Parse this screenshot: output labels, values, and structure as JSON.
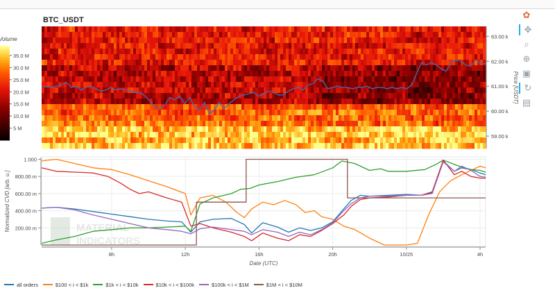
{
  "title": "BTC_USDT",
  "chart_data": [
    {
      "type": "heatmap",
      "title": "BTC_USDT",
      "ylabel": "Price [USDT]",
      "ylim": [
        58500,
        63400
      ],
      "yticks": [
        59000,
        60000,
        61000,
        62000,
        63000
      ],
      "ytick_labels": [
        "59.00 k",
        "60.00 k",
        "61.00 k",
        "62.00 k",
        "63.00 k"
      ],
      "colorbar": {
        "label": "Volume",
        "range": [
          0,
          39000000
        ],
        "ticks": [
          5000000,
          10000000,
          15000000,
          20000000,
          25000000,
          30000000,
          35000000
        ],
        "tick_labels": [
          "5 M",
          "10.0 M",
          "15.0 M",
          "20.0 M",
          "25.0 M",
          "30.0 M",
          "35.0 M"
        ]
      },
      "price_line": {
        "color": "#3d6fb5",
        "x": [
          0,
          1,
          2,
          2.5,
          3,
          3.5,
          4,
          4.5,
          5,
          5.5,
          6,
          6.5,
          7,
          7.5,
          8,
          8.5,
          9,
          9.5,
          10,
          10.5,
          11,
          11.5,
          12,
          12.5,
          13,
          13.5,
          14,
          14.5,
          15,
          15.5,
          16,
          16.5,
          17,
          17.5,
          18,
          18.5,
          19,
          19.5,
          20,
          20.5,
          21,
          21.5,
          22,
          22.5,
          23,
          23.5,
          24,
          24.5,
          25,
          25.5,
          26,
          26.5,
          27,
          27.5,
          28,
          28.5,
          29,
          29.5,
          30,
          30.5,
          31,
          31.5,
          32,
          32.5,
          33,
          33.5,
          34,
          34.5,
          35,
          35.5,
          36,
          36.5,
          37,
          37.5,
          38,
          38.5,
          39,
          39.5,
          40,
          40.5,
          41,
          41.5,
          42,
          42.5,
          43,
          43.5,
          44,
          44.5,
          45
        ],
        "y": [
          61000,
          60950,
          61050,
          61150,
          60950,
          61000,
          60850,
          60950,
          61000,
          60900,
          60800,
          60850,
          60950,
          60850,
          60900,
          60850,
          60800,
          60750,
          60750,
          60600,
          60400,
          60150,
          60100,
          60250,
          60550,
          60450,
          60600,
          60300,
          60550,
          60200,
          60050,
          60350,
          59900,
          60050,
          60350,
          60100,
          60300,
          60450,
          60600,
          60650,
          60700,
          60750,
          60600,
          60700,
          60800,
          60750,
          60650,
          60650,
          60800,
          60900,
          60950,
          60850,
          61050,
          61100,
          61300,
          61200,
          60900,
          60950,
          61000,
          60950,
          60950,
          60900,
          60950,
          60950,
          61000,
          60900,
          60950,
          60950,
          60900,
          60950,
          60900,
          60950,
          60900,
          61050,
          61500,
          61950,
          61850,
          61950,
          61850,
          61700,
          61600,
          61950,
          62050,
          62000,
          61850,
          61800,
          62050,
          61900,
          61900
        ]
      }
    },
    {
      "type": "line",
      "xlabel": "Date (UTC)",
      "ylabel": "Normalized CVD [arb. u.]",
      "ylim": [
        0,
        1.02
      ],
      "yticks": [
        0.2,
        0.4,
        0.6,
        0.8,
        1.0
      ],
      "ytick_labels": [
        "200.00 m",
        "400.00 m",
        "600.00 m",
        "800.00 m",
        "1.000"
      ],
      "xticks": [
        8,
        12,
        16,
        20,
        24,
        28
      ],
      "xtick_labels": [
        "8h",
        "12h",
        "16h",
        "20h",
        "10/25",
        "4h"
      ],
      "xlim": [
        4.2,
        28.3
      ],
      "series": [
        {
          "name": "all orders",
          "color": "#1f77b4",
          "x": [
            4.2,
            5,
            6,
            7,
            8,
            9,
            10,
            11,
            11.8,
            12.3,
            12.8,
            13.5,
            14.5,
            15.2,
            15.6,
            16.2,
            17,
            17.6,
            18.2,
            18.8,
            19.4,
            20,
            20.6,
            21,
            21.5,
            22,
            23,
            24,
            24.8,
            25.4,
            26,
            26.6,
            27,
            27.5,
            28,
            28.3
          ],
          "y": [
            0.43,
            0.44,
            0.42,
            0.39,
            0.36,
            0.33,
            0.3,
            0.28,
            0.27,
            0.15,
            0.27,
            0.3,
            0.31,
            0.24,
            0.14,
            0.26,
            0.21,
            0.15,
            0.2,
            0.17,
            0.2,
            0.27,
            0.42,
            0.52,
            0.58,
            0.57,
            0.58,
            0.59,
            0.58,
            0.61,
            0.98,
            0.86,
            0.9,
            0.88,
            0.84,
            0.82
          ]
        },
        {
          "name": "$100 < i < $1k",
          "color": "#ff7f0e",
          "x": [
            4.2,
            5,
            6,
            7,
            8,
            9,
            10,
            11,
            12,
            12.3,
            12.8,
            13.5,
            14.2,
            14.8,
            15.2,
            15.6,
            16.2,
            16.8,
            17.4,
            18,
            18.5,
            19,
            19.4,
            20,
            20.6,
            21.2,
            22,
            22.8,
            23.5,
            24,
            24.6,
            25.2,
            25.8,
            26.4,
            27,
            27.6,
            28,
            28.3
          ],
          "y": [
            0.98,
            1.0,
            0.95,
            0.9,
            0.88,
            0.82,
            0.75,
            0.68,
            0.6,
            0.35,
            0.55,
            0.58,
            0.5,
            0.38,
            0.32,
            0.42,
            0.5,
            0.47,
            0.52,
            0.47,
            0.38,
            0.4,
            0.33,
            0.3,
            0.22,
            0.18,
            0.08,
            0.0,
            0.0,
            0.0,
            0.02,
            0.35,
            0.62,
            0.75,
            0.82,
            0.88,
            0.92,
            0.9
          ]
        },
        {
          "name": "$1k < i < $10k",
          "color": "#2ca02c",
          "x": [
            4.2,
            5,
            6,
            7,
            8,
            9,
            10,
            11,
            12,
            12.3,
            12.8,
            13.5,
            14.5,
            15,
            15.5,
            16,
            17,
            18,
            19,
            20,
            20.5,
            21.2,
            22,
            22.6,
            23,
            24,
            25,
            25.6,
            26,
            26.6,
            27,
            27.5,
            28,
            28.3
          ],
          "y": [
            0.02,
            0.06,
            0.1,
            0.16,
            0.18,
            0.2,
            0.2,
            0.21,
            0.22,
            0.16,
            0.48,
            0.55,
            0.6,
            0.65,
            0.66,
            0.7,
            0.74,
            0.79,
            0.82,
            0.9,
            0.98,
            0.95,
            0.87,
            0.89,
            0.86,
            0.86,
            0.88,
            0.94,
            0.99,
            0.94,
            0.91,
            0.88,
            0.87,
            0.85
          ]
        },
        {
          "name": "$10k < i < $100k",
          "color": "#d62728",
          "x": [
            4.2,
            5,
            6,
            7,
            7.8,
            8.5,
            9,
            9.5,
            10,
            11,
            11.8,
            12.3,
            12.8,
            13.5,
            14.5,
            15.2,
            15.6,
            16.2,
            17,
            17.6,
            18.2,
            18.8,
            19.4,
            20,
            20.6,
            21,
            21.5,
            22,
            23,
            24,
            24.8,
            25.4,
            26,
            26.6,
            27,
            27.5,
            28,
            28.3
          ],
          "y": [
            0.9,
            0.86,
            0.85,
            0.84,
            0.8,
            0.72,
            0.65,
            0.6,
            0.62,
            0.55,
            0.5,
            0.22,
            0.25,
            0.2,
            0.15,
            0.1,
            0.05,
            0.14,
            0.08,
            0.05,
            0.12,
            0.1,
            0.17,
            0.25,
            0.35,
            0.45,
            0.53,
            0.55,
            0.56,
            0.58,
            0.58,
            0.62,
            0.99,
            0.82,
            0.86,
            0.8,
            0.78,
            0.78
          ]
        },
        {
          "name": "$100k < i < $1M",
          "color": "#9467bd",
          "x": [
            4.2,
            5,
            6,
            7,
            8,
            9,
            10,
            11,
            11.8,
            12.3,
            12.8,
            13.5,
            14.5,
            15.2,
            15.6,
            16.2,
            17,
            17.6,
            18.2,
            18.8,
            19.4,
            20,
            20.6,
            21,
            21.5,
            22,
            23,
            24,
            24.8,
            25.4,
            26,
            26.6,
            27,
            27.5,
            28,
            28.3
          ],
          "y": [
            0.43,
            0.44,
            0.41,
            0.35,
            0.3,
            0.25,
            0.2,
            0.18,
            0.16,
            0.13,
            0.19,
            0.21,
            0.18,
            0.16,
            0.12,
            0.18,
            0.15,
            0.1,
            0.15,
            0.12,
            0.18,
            0.26,
            0.4,
            0.48,
            0.55,
            0.57,
            0.57,
            0.58,
            0.58,
            0.6,
            0.97,
            0.86,
            0.92,
            0.87,
            0.8,
            0.79
          ]
        },
        {
          "name": "$1M < i < $10M",
          "color": "#8c564b",
          "x": [
            4.2,
            12.6,
            12.6,
            15.3,
            15.3,
            20.8,
            20.8,
            28.3
          ],
          "y": [
            0.0,
            0.0,
            0.5,
            0.5,
            1.0,
            1.0,
            0.55,
            0.55
          ]
        }
      ]
    }
  ],
  "watermark": {
    "line1": "MATERIAL",
    "line2": "INDICATORS"
  },
  "toolbar": [
    {
      "name": "bokeh-logo-icon",
      "glyph": "✿"
    },
    {
      "name": "pan-tool-icon",
      "glyph": "✥"
    },
    {
      "name": "zoom-tool-icon",
      "glyph": "⌕"
    },
    {
      "name": "wheel-zoom-tool-icon",
      "glyph": "⊕"
    },
    {
      "name": "save-tool-icon",
      "glyph": "▣"
    },
    {
      "name": "reset-tool-icon",
      "glyph": "↻"
    },
    {
      "name": "hover-tool-icon",
      "glyph": "▤"
    }
  ]
}
